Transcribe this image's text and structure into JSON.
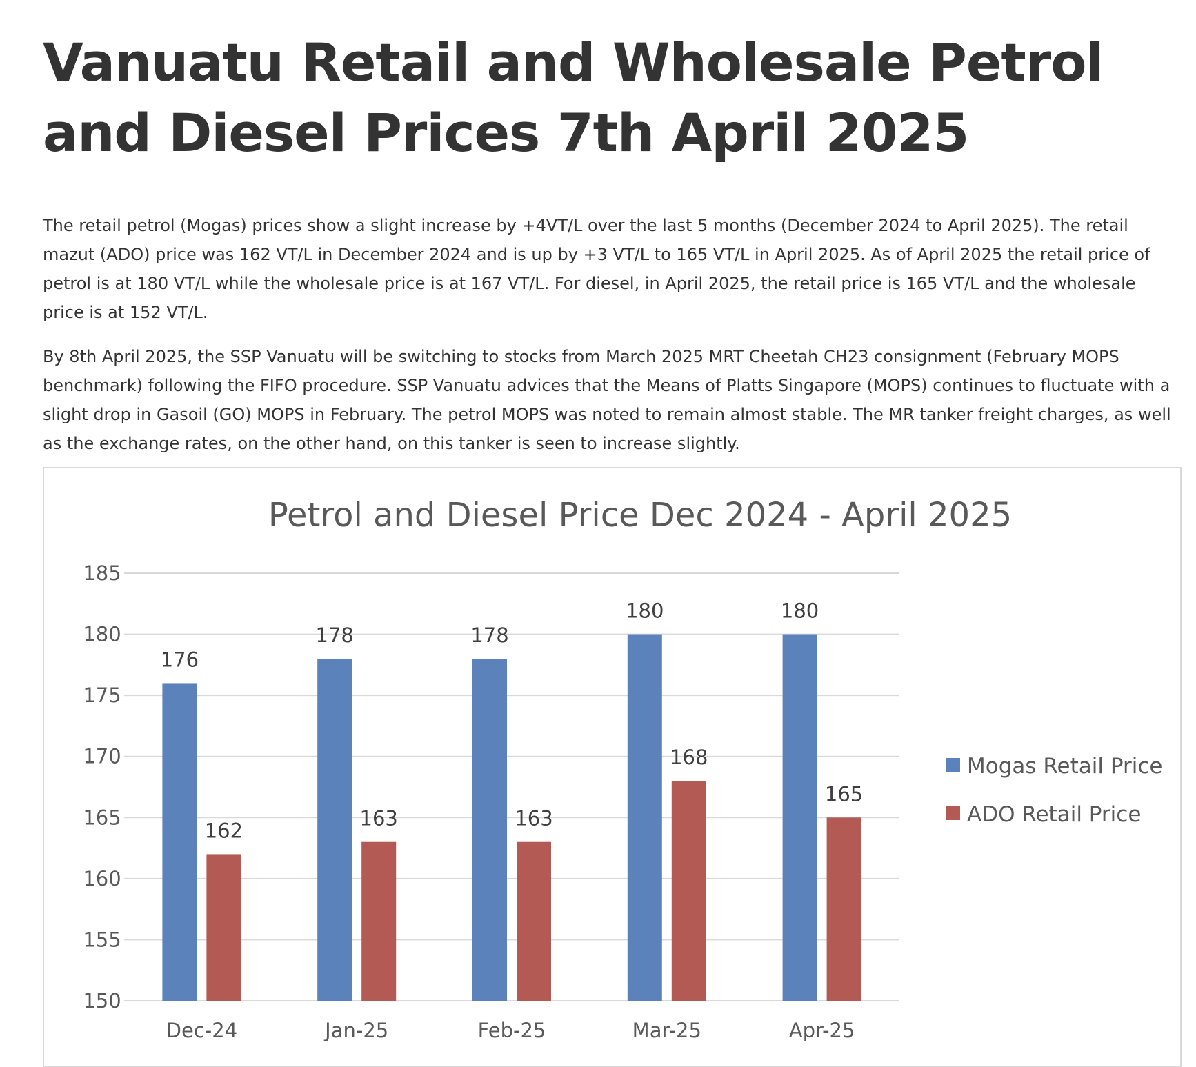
{
  "article": {
    "headline": "Vanuatu Retail and Wholesale Petrol and Diesel Prices 7th April 2025",
    "paragraph_1": "The retail petrol (Mogas) prices show a slight increase by +4VT/L over the last 5 months (December 2024 to April 2025). The retail mazut (ADO) price was 162 VT/L in December 2024 and is up by +3 VT/L to 165 VT/L in April 2025. As of April 2025 the retail price of petrol is at 180 VT/L while the wholesale price is at 167 VT/L. For diesel, in April 2025, the retail price is 165 VT/L and the wholesale price is at 152 VT/L.",
    "paragraph_2": "By 8th April 2025, the SSP Vanuatu will be switching to stocks from March 2025 MRT Cheetah CH23 consignment (February MOPS benchmark) following the FIFO procedure. SSP Vanuatu advices that the Means of Platts Singapore (MOPS) continues to fluctuate with a slight drop in Gasoil (GO) MOPS in February. The petrol MOPS was noted to remain almost stable. The MR tanker freight charges, as well as the exchange rates, on the other hand, on this tanker is seen to increase slightly."
  },
  "chart_data": {
    "type": "bar",
    "title": "Petrol and Diesel Price Dec 2024 - April 2025",
    "xlabel": "",
    "ylabel": "",
    "categories": [
      "Dec-24",
      "Jan-25",
      "Feb-25",
      "Mar-25",
      "Apr-25"
    ],
    "series": [
      {
        "name": "Mogas Retail Price",
        "values": [
          176,
          178,
          178,
          180,
          180
        ],
        "color": "#5b82bb"
      },
      {
        "name": "ADO Retail Price",
        "values": [
          162,
          163,
          163,
          168,
          165
        ],
        "color": "#b45a55"
      }
    ],
    "ylim": [
      150,
      185
    ],
    "yticks": [
      150,
      155,
      160,
      165,
      170,
      175,
      180,
      185
    ],
    "grid": true,
    "data_labels": true,
    "legend_position": "right",
    "gridline_color": "#d9d9d9"
  }
}
